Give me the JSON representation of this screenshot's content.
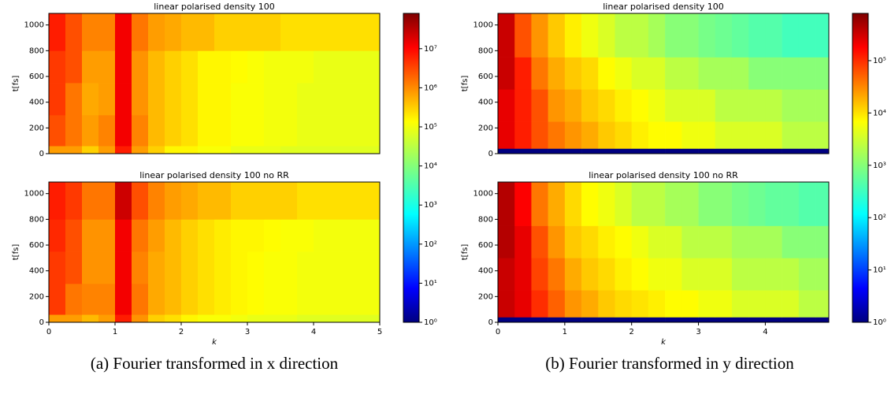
{
  "figures": [
    {
      "caption": "(a) Fourier transformed in x direction",
      "colorbar": {
        "log": true,
        "lim": [
          1,
          80000000
        ],
        "ticks": [
          {
            "value": 1,
            "label": "10⁰"
          },
          {
            "value": 10,
            "label": "10¹"
          },
          {
            "value": 100,
            "label": "10²"
          },
          {
            "value": 1000,
            "label": "10³"
          },
          {
            "value": 10000,
            "label": "10⁴"
          },
          {
            "value": 100000,
            "label": "10⁵"
          },
          {
            "value": 1000000,
            "label": "10⁶"
          },
          {
            "value": 10000000,
            "label": "10⁷"
          }
        ]
      },
      "chart_data": [
        {
          "type": "heatmap",
          "title": "linear polarised density 100",
          "ylabel": "t[fs]",
          "x": [
            0,
            0.25,
            0.5,
            0.75,
            1,
            1.25,
            1.5,
            1.75,
            2,
            2.25,
            2.5,
            2.75,
            3,
            3.25,
            3.5,
            3.75,
            4,
            4.25,
            4.5,
            4.75,
            5
          ],
          "y": [
            0,
            60,
            300,
            550,
            800,
            1090
          ],
          "z": [
            [
              500000.0,
              500000.0,
              200000.0,
              500000.0,
              5000000.0,
              500000.0,
              200000.0,
              100000.0,
              100000.0,
              80000.0,
              80000.0,
              60000.0,
              60000.0,
              60000.0,
              50000.0,
              50000.0,
              50000.0,
              50000.0,
              50000.0,
              50000.0
            ],
            [
              2000000.0,
              1000000.0,
              500000.0,
              800000.0,
              10000000.0,
              800000.0,
              300000.0,
              200000.0,
              150000.0,
              100000.0,
              100000.0,
              80000.0,
              80000.0,
              70000.0,
              70000.0,
              60000.0,
              60000.0,
              60000.0,
              60000.0,
              60000.0
            ],
            [
              3000000.0,
              1000000.0,
              400000.0,
              500000.0,
              10000000.0,
              600000.0,
              300000.0,
              200000.0,
              150000.0,
              100000.0,
              100000.0,
              80000.0,
              80000.0,
              70000.0,
              70000.0,
              60000.0,
              60000.0,
              60000.0,
              60000.0,
              60000.0
            ],
            [
              3000000.0,
              2000000.0,
              500000.0,
              500000.0,
              10000000.0,
              600000.0,
              300000.0,
              200000.0,
              150000.0,
              100000.0,
              100000.0,
              90000.0,
              80000.0,
              70000.0,
              70000.0,
              70000.0,
              60000.0,
              60000.0,
              60000.0,
              60000.0
            ],
            [
              5000000.0,
              2000000.0,
              800000.0,
              800000.0,
              10000000.0,
              1000000.0,
              500000.0,
              400000.0,
              300000.0,
              300000.0,
              200000.0,
              200000.0,
              200000.0,
              200000.0,
              150000.0,
              150000.0,
              150000.0,
              150000.0,
              150000.0,
              150000.0
            ]
          ],
          "xlim": [
            0,
            5
          ],
          "ylim": [
            0,
            1090
          ],
          "yticks": [
            0,
            200,
            400,
            600,
            800,
            1000
          ]
        },
        {
          "type": "heatmap",
          "title": "linear polarised density 100 no RR",
          "xlabel": "k",
          "ylabel": "t[fs]",
          "x": [
            0,
            0.25,
            0.5,
            0.75,
            1,
            1.25,
            1.5,
            1.75,
            2,
            2.25,
            2.5,
            2.75,
            3,
            3.25,
            3.5,
            3.75,
            4,
            4.25,
            4.5,
            4.75,
            5
          ],
          "y": [
            0,
            60,
            300,
            550,
            800,
            1090
          ],
          "z": [
            [
              500000.0,
              500000.0,
              300000.0,
              500000.0,
              5000000.0,
              600000.0,
              200000.0,
              150000.0,
              100000.0,
              80000.0,
              80000.0,
              70000.0,
              60000.0,
              60000.0,
              60000.0,
              50000.0,
              50000.0,
              50000.0,
              50000.0,
              50000.0
            ],
            [
              3000000.0,
              1000000.0,
              800000.0,
              800000.0,
              10000000.0,
              1000000.0,
              400000.0,
              300000.0,
              200000.0,
              150000.0,
              120000.0,
              100000.0,
              90000.0,
              80000.0,
              80000.0,
              70000.0,
              70000.0,
              70000.0,
              70000.0,
              70000.0
            ],
            [
              3000000.0,
              2000000.0,
              600000.0,
              600000.0,
              10000000.0,
              800000.0,
              400000.0,
              300000.0,
              200000.0,
              150000.0,
              120000.0,
              100000.0,
              90000.0,
              80000.0,
              80000.0,
              70000.0,
              70000.0,
              70000.0,
              70000.0,
              70000.0
            ],
            [
              4000000.0,
              2000000.0,
              600000.0,
              600000.0,
              10000000.0,
              1000000.0,
              500000.0,
              300000.0,
              200000.0,
              150000.0,
              120000.0,
              100000.0,
              100000.0,
              90000.0,
              80000.0,
              80000.0,
              70000.0,
              70000.0,
              70000.0,
              70000.0
            ],
            [
              5000000.0,
              3000000.0,
              1000000.0,
              1000000.0,
              20000000.0,
              2000000.0,
              800000.0,
              500000.0,
              400000.0,
              300000.0,
              300000.0,
              200000.0,
              200000.0,
              200000.0,
              200000.0,
              150000.0,
              150000.0,
              150000.0,
              150000.0,
              150000.0
            ]
          ],
          "xlim": [
            0,
            5
          ],
          "ylim": [
            0,
            1090
          ],
          "xticks": [
            0,
            1,
            2,
            3,
            4,
            5
          ],
          "yticks": [
            0,
            200,
            400,
            600,
            800,
            1000
          ]
        }
      ]
    },
    {
      "caption": "(b) Fourier transformed in y direction",
      "colorbar": {
        "log": true,
        "lim": [
          1,
          800000
        ],
        "ticks": [
          {
            "value": 1,
            "label": "10⁰"
          },
          {
            "value": 10,
            "label": "10¹"
          },
          {
            "value": 100,
            "label": "10²"
          },
          {
            "value": 1000,
            "label": "10³"
          },
          {
            "value": 10000,
            "label": "10⁴"
          },
          {
            "value": 100000,
            "label": "10⁵"
          }
        ]
      },
      "chart_data": [
        {
          "type": "heatmap",
          "title": "linear polarised density 100",
          "ylabel": "t[fs]",
          "x": [
            0,
            0.25,
            0.5,
            0.75,
            1,
            1.25,
            1.5,
            1.75,
            2,
            2.25,
            2.5,
            2.75,
            3,
            3.25,
            3.5,
            3.75,
            4,
            4.25,
            4.5,
            4.75,
            4.95
          ],
          "y": [
            0,
            40,
            250,
            500,
            750,
            1090
          ],
          "z": [
            [
              1,
              1,
              1,
              1,
              1,
              1,
              1,
              1,
              1,
              1,
              1,
              1,
              1,
              1,
              1,
              1,
              1,
              1,
              1,
              1
            ],
            [
              200000.0,
              100000.0,
              50000.0,
              30000.0,
              20000.0,
              15000.0,
              10000.0,
              8000.0,
              6000.0,
              5000.0,
              5000.0,
              4000.0,
              4000.0,
              3000.0,
              3000.0,
              3000.0,
              3000.0,
              2000.0,
              2000.0,
              2000.0
            ],
            [
              200000.0,
              100000.0,
              50000.0,
              20000.0,
              15000.0,
              10000.0,
              8000.0,
              6000.0,
              5000.0,
              4000.0,
              3000.0,
              3000.0,
              3000.0,
              2000.0,
              2000.0,
              2000.0,
              2000.0,
              1500.0,
              1500.0,
              1500.0
            ],
            [
              300000.0,
              100000.0,
              30000.0,
              15000.0,
              10000.0,
              8000.0,
              5000.0,
              4000.0,
              3000.0,
              3000.0,
              2000.0,
              2000.0,
              1500.0,
              1500.0,
              1500.0,
              1000.0,
              1000.0,
              1000.0,
              1000.0,
              1000.0
            ],
            [
              300000.0,
              50000.0,
              20000.0,
              10000.0,
              6000.0,
              4000.0,
              3000.0,
              2000.0,
              2000.0,
              1500.0,
              1000.0,
              1000.0,
              800,
              700,
              600,
              500,
              500,
              400,
              400,
              400
            ]
          ],
          "xlim": [
            0,
            4.95
          ],
          "ylim": [
            0,
            1090
          ],
          "yticks": [
            0,
            200,
            400,
            600,
            800,
            1000
          ]
        },
        {
          "type": "heatmap",
          "title": "linear polarised density 100 no RR",
          "xlabel": "k",
          "ylabel": "t[fs]",
          "x": [
            0,
            0.25,
            0.5,
            0.75,
            1,
            1.25,
            1.5,
            1.75,
            2,
            2.25,
            2.5,
            2.75,
            3,
            3.25,
            3.5,
            3.75,
            4,
            4.25,
            4.5,
            4.75,
            4.95
          ],
          "y": [
            0,
            40,
            250,
            500,
            750,
            1090
          ],
          "z": [
            [
              1,
              1,
              1,
              1,
              1,
              1,
              1,
              1,
              1,
              1,
              1,
              1,
              1,
              1,
              1,
              1,
              1,
              1,
              1,
              1
            ],
            [
              300000.0,
              200000.0,
              80000.0,
              40000.0,
              20000.0,
              15000.0,
              10000.0,
              8000.0,
              7000.0,
              6000.0,
              5000.0,
              5000.0,
              4000.0,
              4000.0,
              3000.0,
              3000.0,
              3000.0,
              3000.0,
              2000.0,
              2000.0
            ],
            [
              300000.0,
              200000.0,
              60000.0,
              30000.0,
              15000.0,
              10000.0,
              8000.0,
              6000.0,
              5000.0,
              4000.0,
              4000.0,
              3000.0,
              3000.0,
              3000.0,
              2000.0,
              2000.0,
              2000.0,
              2000.0,
              1500.0,
              1500.0
            ],
            [
              400000.0,
              200000.0,
              50000.0,
              20000.0,
              10000.0,
              8000.0,
              6000.0,
              5000.0,
              4000.0,
              3000.0,
              3000.0,
              2000.0,
              2000.0,
              2000.0,
              1500.0,
              1500.0,
              1500.0,
              1000.0,
              1000.0,
              1000.0
            ],
            [
              400000.0,
              150000.0,
              30000.0,
              15000.0,
              8000.0,
              5000.0,
              4000.0,
              3000.0,
              2000.0,
              2000.0,
              1500.0,
              1500.0,
              1000.0,
              1000.0,
              800,
              700,
              600,
              600,
              500,
              500
            ]
          ],
          "xlim": [
            0,
            4.95
          ],
          "ylim": [
            0,
            1090
          ],
          "xticks": [
            0,
            1,
            2,
            3,
            4
          ],
          "yticks": [
            0,
            200,
            400,
            600,
            800,
            1000
          ]
        }
      ]
    }
  ]
}
